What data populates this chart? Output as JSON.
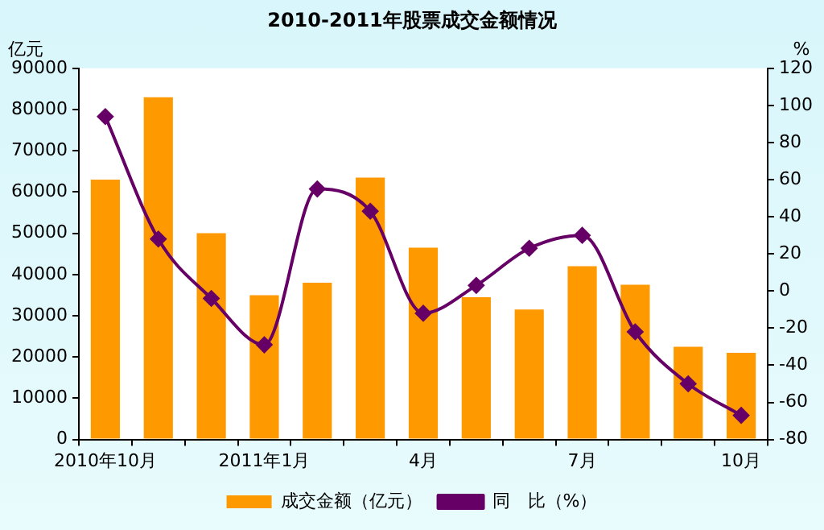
{
  "chart_data": {
    "type": "bar",
    "title": "2010-2011年股票成交金额情况",
    "ylabel": "亿元",
    "y2label": "%",
    "categories": [
      "2010年10月",
      null,
      null,
      "2011年1月",
      null,
      null,
      "4月",
      null,
      null,
      "7月",
      null,
      null,
      "10月"
    ],
    "series": [
      {
        "name": "成交金额（亿元）",
        "color": "#ff9900",
        "values": [
          63000,
          83000,
          50000,
          35000,
          38000,
          63500,
          46500,
          34500,
          31500,
          42000,
          37500,
          22500,
          21000
        ]
      },
      {
        "name": "同　比（%）",
        "type": "line",
        "axis": "y2",
        "color": "#660066",
        "marker": "diamond",
        "values": [
          94,
          28,
          -4,
          -29,
          55,
          43,
          -12,
          3,
          23,
          30,
          -22,
          -50,
          -67
        ]
      }
    ],
    "ylim": [
      0,
      90000
    ],
    "yticks": [
      0,
      10000,
      20000,
      30000,
      40000,
      50000,
      60000,
      70000,
      80000,
      90000
    ],
    "y2lim": [
      -80,
      120
    ],
    "y2ticks": [
      -80,
      -60,
      -40,
      -20,
      0,
      20,
      40,
      60,
      80,
      100,
      120
    ],
    "grid": false,
    "legend": "bottom"
  }
}
